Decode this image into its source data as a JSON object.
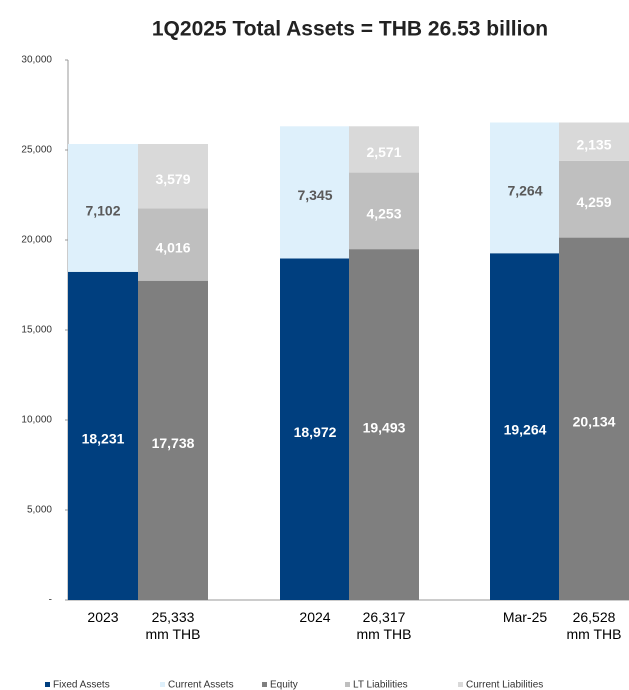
{
  "chart_data": {
    "type": "stacked_bar",
    "title": "1Q2025 Total Assets = THB 26.53 billion",
    "categories": [
      "2023",
      "25,333\nmm THB",
      "2024",
      "26,317\nmm THB",
      "Mar-25",
      "26,528\nmm THB"
    ],
    "series": [
      {
        "name": "Fixed Assets",
        "color": "#003f7f",
        "label_color": "#ffffff",
        "values": [
          18231,
          null,
          18972,
          null,
          19264,
          null
        ],
        "value_labels": [
          "18,231",
          null,
          "18,972",
          null,
          "19,264",
          null
        ]
      },
      {
        "name": "Current Assets",
        "color": "#def0fb",
        "label_color": "#595959",
        "values": [
          7102,
          null,
          7345,
          null,
          7264,
          null
        ],
        "value_labels": [
          "7,102",
          null,
          "7,345",
          null,
          "7,264",
          null
        ]
      },
      {
        "name": "Equity",
        "color": "#7f7f7f",
        "label_color": "#ffffff",
        "values": [
          null,
          17738,
          null,
          19493,
          null,
          20134
        ],
        "value_labels": [
          null,
          "17,738",
          null,
          "19,493",
          null,
          "20,134"
        ]
      },
      {
        "name": "LT Liabilities",
        "color": "#bfbfbf",
        "label_color": "#ffffff",
        "values": [
          null,
          4016,
          null,
          4253,
          null,
          4259
        ],
        "value_labels": [
          null,
          "4,016",
          null,
          "4,253",
          null,
          "4,259"
        ]
      },
      {
        "name": "Current Liabilities",
        "color": "#d9d9d9",
        "label_color": "#ffffff",
        "values": [
          null,
          3579,
          null,
          2571,
          null,
          2135
        ],
        "value_labels": [
          null,
          "3,579",
          null,
          "2,571",
          null,
          "2,135"
        ]
      }
    ],
    "ylim": [
      0,
      30000
    ],
    "yticks": [
      {
        "value": 0,
        "label": "-"
      },
      {
        "value": 5000,
        "label": "5,000"
      },
      {
        "value": 10000,
        "label": "10,000"
      },
      {
        "value": 15000,
        "label": "15,000"
      },
      {
        "value": 20000,
        "label": "20,000"
      },
      {
        "value": 25000,
        "label": "25,000"
      },
      {
        "value": 30000,
        "label": "30,000"
      }
    ],
    "legend": "bottom"
  }
}
